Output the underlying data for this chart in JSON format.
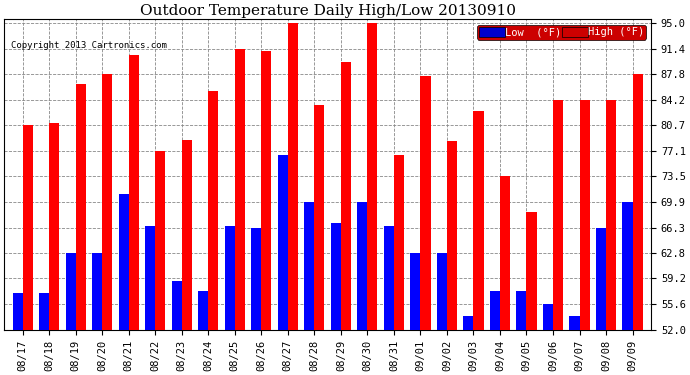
{
  "title": "Outdoor Temperature Daily High/Low 20130910",
  "copyright": "Copyright 2013 Cartronics.com",
  "categories": [
    "08/17",
    "08/18",
    "08/19",
    "08/20",
    "08/21",
    "08/22",
    "08/23",
    "08/24",
    "08/25",
    "08/26",
    "08/27",
    "08/28",
    "08/29",
    "08/30",
    "08/31",
    "09/01",
    "09/02",
    "09/03",
    "09/04",
    "09/05",
    "09/06",
    "09/07",
    "09/08",
    "09/09"
  ],
  "high": [
    80.7,
    81.0,
    86.5,
    87.8,
    90.5,
    77.1,
    78.6,
    85.5,
    91.4,
    91.0,
    95.0,
    83.5,
    89.5,
    95.0,
    76.5,
    87.5,
    78.5,
    82.6,
    73.5,
    68.5,
    84.2,
    84.2,
    84.2,
    87.8
  ],
  "low": [
    57.2,
    57.2,
    62.8,
    62.8,
    71.0,
    66.5,
    58.8,
    57.5,
    66.5,
    66.3,
    76.5,
    69.9,
    67.0,
    69.9,
    66.5,
    62.8,
    62.8,
    54.0,
    57.5,
    57.5,
    55.6,
    54.0,
    66.3,
    69.9
  ],
  "high_color": "#ff0000",
  "low_color": "#0000ff",
  "bg_color": "#ffffff",
  "plot_bg_color": "#ffffff",
  "grid_color": "#888888",
  "yticks": [
    52.0,
    55.6,
    59.2,
    62.8,
    66.3,
    69.9,
    73.5,
    77.1,
    80.7,
    84.2,
    87.8,
    91.4,
    95.0
  ],
  "ylim": [
    52.0,
    95.0
  ],
  "title_fontsize": 11,
  "tick_fontsize": 7.5,
  "bar_width": 0.38,
  "legend_low_bg": "#0000cc",
  "legend_high_bg": "#cc0000"
}
